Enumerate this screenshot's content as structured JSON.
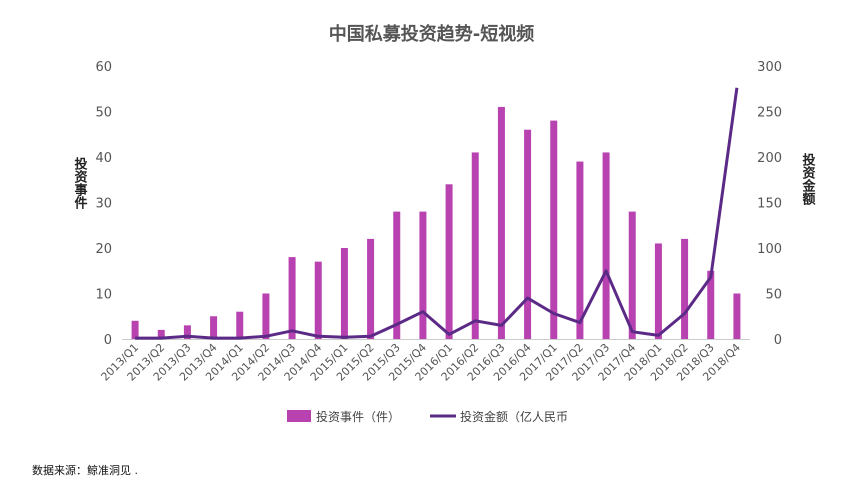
{
  "chart_data": {
    "type": "bar",
    "title": "中国私募投资趋势-短视频",
    "categories": [
      "2013/Q1",
      "2013/Q2",
      "2013/Q3",
      "2013/Q4",
      "2014/Q1",
      "2014/Q2",
      "2014/Q3",
      "2014/Q4",
      "2015/Q1",
      "2015/Q2",
      "2015/Q3",
      "2015/Q4",
      "2016/Q1",
      "2016/Q2",
      "2016/Q3",
      "2016/Q4",
      "2017/Q1",
      "2017/Q2",
      "2017/Q3",
      "2017/Q4",
      "2018/Q1",
      "2018/Q2",
      "2018/Q3",
      "2018/Q4"
    ],
    "series": [
      {
        "name": "投资事件（件）",
        "type": "bar",
        "axis": "left",
        "color": "#b742b0",
        "values": [
          4,
          2,
          3,
          5,
          6,
          10,
          18,
          17,
          20,
          22,
          28,
          28,
          34,
          41,
          51,
          46,
          48,
          39,
          41,
          28,
          21,
          22,
          15,
          10
        ]
      },
      {
        "name": "投资金额（亿人民币",
        "type": "line",
        "axis": "right",
        "color": "#5b2a86",
        "values": [
          1,
          1,
          3,
          1,
          1,
          3,
          9,
          3,
          2,
          3,
          16,
          30,
          5,
          20,
          15,
          45,
          28,
          18,
          75,
          8,
          4,
          28,
          68,
          276
        ]
      }
    ],
    "ylabel_left": "投资事件",
    "ylabel_right": "投资金额",
    "ylim_left": [
      0,
      60
    ],
    "ylim_right": [
      0,
      300
    ],
    "yticks_left": [
      "0",
      "10",
      "20",
      "30",
      "40",
      "50",
      "60"
    ],
    "yticks_right": [
      "0",
      "50",
      "100",
      "150",
      "200",
      "250",
      "300"
    ],
    "grid": false,
    "legend": "bottom"
  },
  "source_text": "数据来源：鲸准洞见 ."
}
